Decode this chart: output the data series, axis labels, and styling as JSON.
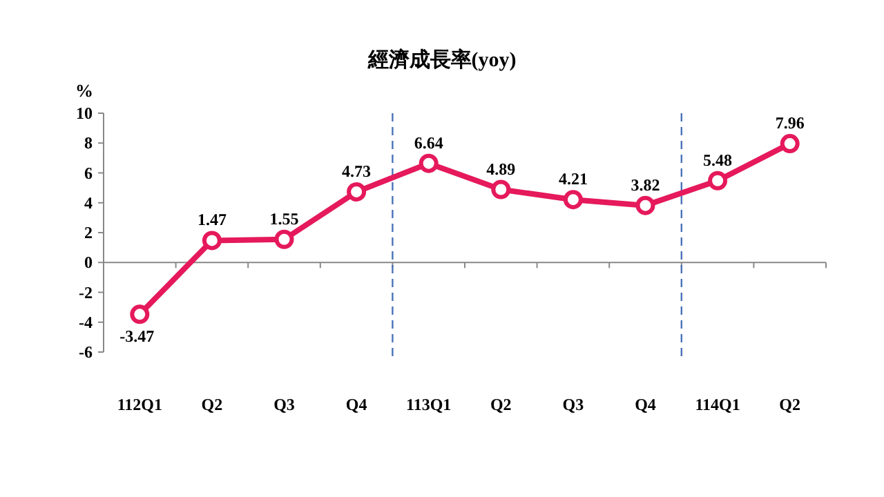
{
  "chart_data": {
    "type": "line",
    "title": "經濟成長率(yoy)",
    "ylabel": "%",
    "categories": [
      "112Q1",
      "Q2",
      "Q3",
      "Q4",
      "113Q1",
      "Q2",
      "Q3",
      "Q4",
      "114Q1",
      "Q2"
    ],
    "series": [
      {
        "color": "#e5195c",
        "values": [
          -3.47,
          1.47,
          1.55,
          4.73,
          6.64,
          4.89,
          4.21,
          3.82,
          5.48,
          7.96
        ]
      }
    ],
    "ylim": [
      -6,
      10
    ],
    "yticks": [
      -6,
      -4,
      -2,
      0,
      2,
      4,
      6,
      8,
      10
    ],
    "data_labels": true,
    "marker": "circle",
    "line_style": "solid",
    "grid": false
  }
}
